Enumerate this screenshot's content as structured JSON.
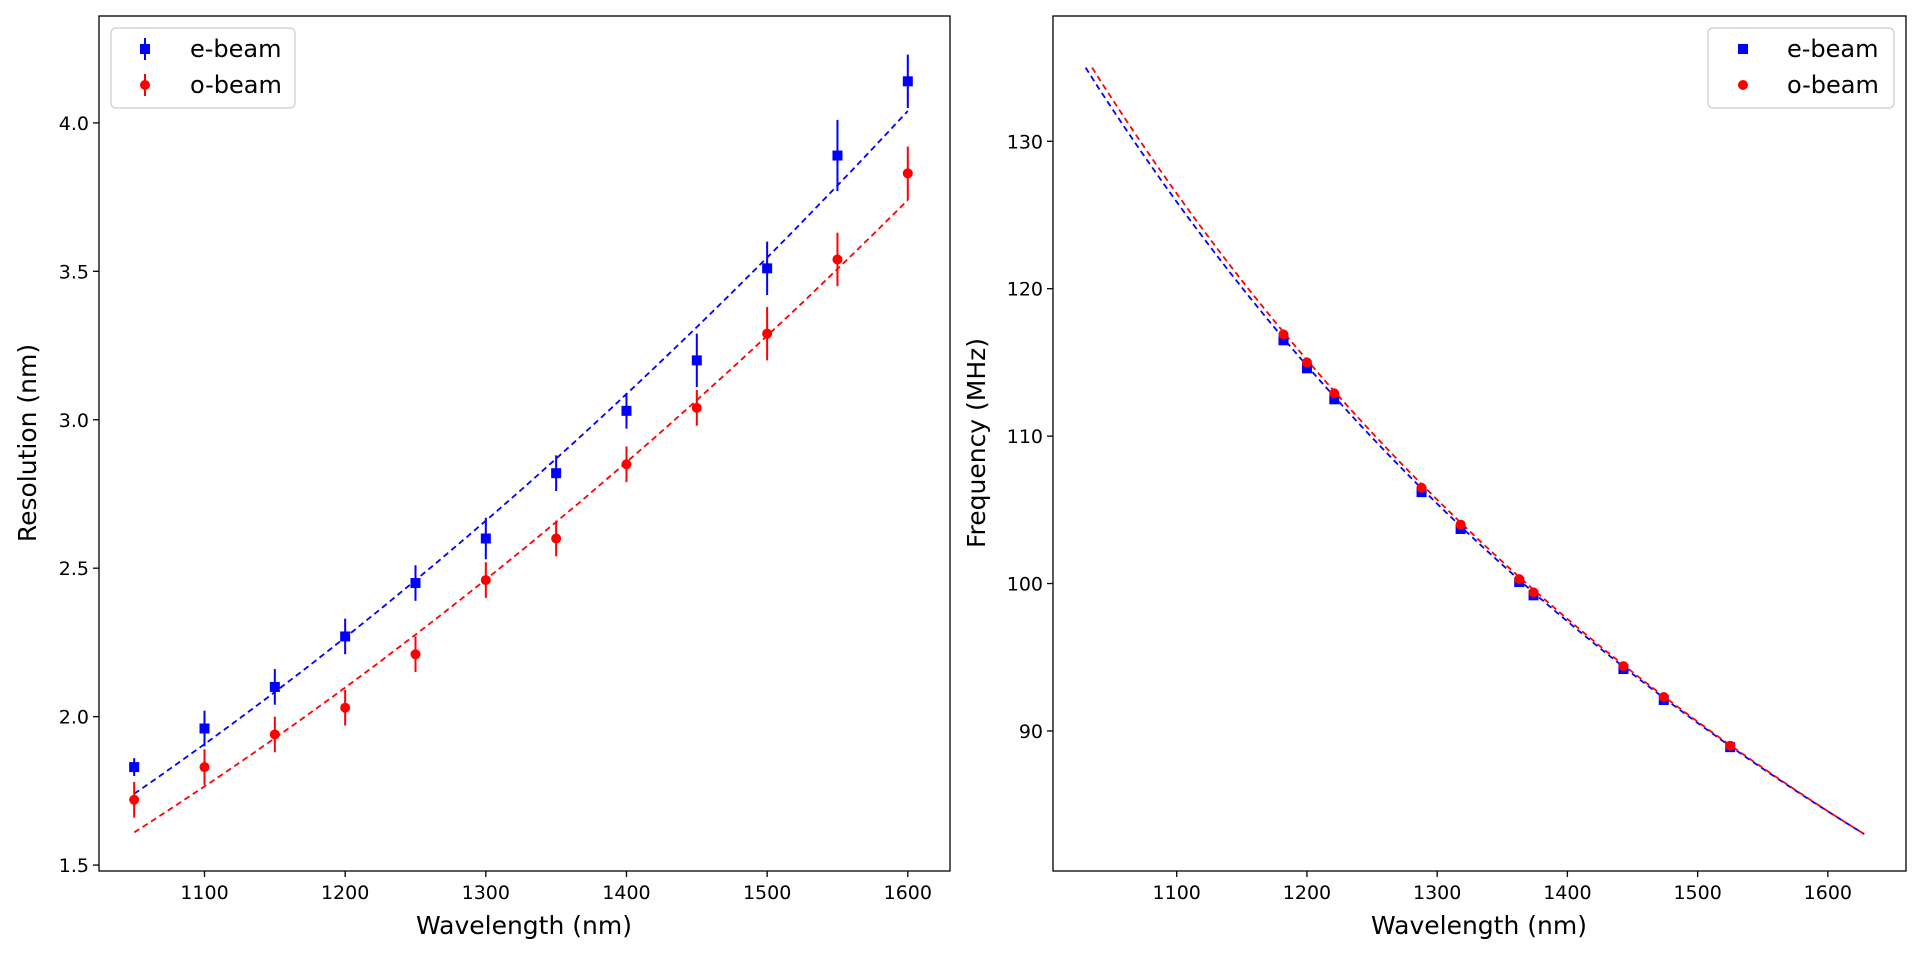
{
  "chart_data": [
    {
      "type": "scatter",
      "title": "",
      "xlabel": "Wavelength (nm)",
      "ylabel": "Resolution (nm)",
      "xlim": [
        1025,
        1630
      ],
      "ylim": [
        1.48,
        4.36
      ],
      "xticks": [
        1100,
        1200,
        1300,
        1400,
        1500,
        1600
      ],
      "yticks": [
        1.5,
        2.0,
        2.5,
        3.0,
        3.5,
        4.0
      ],
      "xtick_labels": [
        "1100",
        "1200",
        "1300",
        "1400",
        "1500",
        "1600"
      ],
      "ytick_labels": [
        "1.5",
        "2.0",
        "2.5",
        "3.0",
        "3.5",
        "4.0"
      ],
      "grid": false,
      "legend_position": "top-left",
      "legend": [
        "e-beam",
        "o-beam"
      ],
      "series": [
        {
          "name": "e-beam",
          "color": "#0000ff",
          "marker": "square",
          "x": [
            1050,
            1100,
            1150,
            1200,
            1250,
            1300,
            1350,
            1400,
            1450,
            1500,
            1550,
            1600
          ],
          "y": [
            1.83,
            1.96,
            2.1,
            2.27,
            2.45,
            2.6,
            2.82,
            3.03,
            3.2,
            3.51,
            3.89,
            4.14
          ],
          "yerr": [
            0.03,
            0.06,
            0.06,
            0.06,
            0.06,
            0.07,
            0.06,
            0.06,
            0.09,
            0.09,
            0.12,
            0.09
          ],
          "fit_x": [
            1050,
            1600
          ],
          "fit_y": [
            1.74,
            4.04
          ]
        },
        {
          "name": "o-beam",
          "color": "#ff0000",
          "marker": "circle",
          "x": [
            1050,
            1100,
            1150,
            1200,
            1250,
            1300,
            1350,
            1400,
            1450,
            1500,
            1550,
            1600
          ],
          "y": [
            1.72,
            1.83,
            1.94,
            2.03,
            2.21,
            2.46,
            2.6,
            2.85,
            3.04,
            3.29,
            3.54,
            3.83
          ],
          "yerr": [
            0.06,
            0.06,
            0.06,
            0.06,
            0.06,
            0.06,
            0.06,
            0.06,
            0.06,
            0.09,
            0.09,
            0.09
          ],
          "fit_x": [
            1050,
            1600
          ],
          "fit_y": [
            1.61,
            3.74
          ]
        }
      ]
    },
    {
      "type": "scatter",
      "title": "",
      "xlabel": "Wavelength (nm)",
      "ylabel": "Frequency (MHz)",
      "xlim": [
        1005,
        1660
      ],
      "ylim": [
        80.5,
        138.5
      ],
      "xticks": [
        1100,
        1200,
        1300,
        1400,
        1500,
        1600
      ],
      "yticks": [
        90,
        100,
        110,
        120,
        130
      ],
      "xtick_labels": [
        "1100",
        "1200",
        "1300",
        "1400",
        "1500",
        "1600"
      ],
      "ytick_labels": [
        "90",
        "100",
        "110",
        "120",
        "130"
      ],
      "grid": false,
      "legend_position": "top-right",
      "legend": [
        "e-beam",
        "o-beam"
      ],
      "series": [
        {
          "name": "e-beam",
          "color": "#0000ff",
          "marker": "square",
          "x": [
            1182,
            1200,
            1221,
            1288,
            1318,
            1363,
            1374,
            1443,
            1474,
            1525
          ],
          "y": [
            116.5,
            114.6,
            112.5,
            106.2,
            103.7,
            100.1,
            99.2,
            94.2,
            92.1,
            88.9
          ],
          "fit_x": [
            1030,
            1628
          ],
          "fit_y": [
            135.0,
            83.0
          ]
        },
        {
          "name": "o-beam",
          "color": "#ff0000",
          "marker": "circle",
          "x": [
            1182,
            1200,
            1221,
            1288,
            1318,
            1363,
            1374,
            1443,
            1474,
            1525
          ],
          "y": [
            116.9,
            115.0,
            112.9,
            106.5,
            104.0,
            100.3,
            99.4,
            94.4,
            92.3,
            89.0
          ],
          "fit_x": [
            1035,
            1628
          ],
          "fit_y": [
            135.0,
            83.0
          ]
        }
      ]
    }
  ]
}
